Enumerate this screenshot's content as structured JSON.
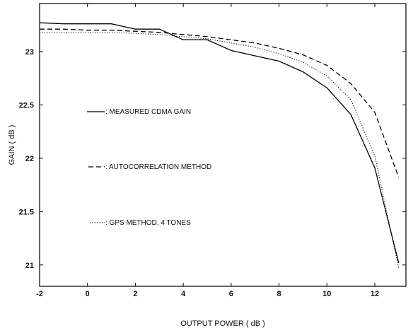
{
  "chart_data": {
    "type": "line",
    "title": "",
    "xlabel": "OUTPUT POWER ( dB )",
    "ylabel": "GAIN ( dB )",
    "xlim": [
      -2,
      13.3
    ],
    "ylim": [
      20.8,
      23.45
    ],
    "xticks": [
      -2,
      0,
      2,
      4,
      6,
      8,
      10,
      12
    ],
    "yticks": [
      21,
      21.5,
      22,
      22.5,
      23
    ],
    "xtick_labels": [
      "-2",
      "0",
      "2",
      "4",
      "6",
      "8",
      "10",
      "12"
    ],
    "ytick_labels": [
      "21",
      "21.5",
      "22",
      "22.5",
      "23"
    ],
    "grid": false,
    "legend_placement": "inside-left",
    "series": [
      {
        "name": "MEASURED CDMA GAIN",
        "legend_label": ": MEASURED CDMA GAIN",
        "style": "solid",
        "color": "#000000",
        "x": [
          -2,
          -1,
          0,
          1,
          2,
          3,
          4,
          5,
          6,
          7,
          8,
          9,
          10,
          11,
          12,
          13
        ],
        "y": [
          23.27,
          23.26,
          23.26,
          23.26,
          23.21,
          23.21,
          23.11,
          23.11,
          23.01,
          22.96,
          22.91,
          22.81,
          22.66,
          22.41,
          21.91,
          21.02
        ]
      },
      {
        "name": "AUTOCORRELATION METHOD",
        "legend_label": ": AUTOCORRELATION METHOD",
        "style": "dashed",
        "color": "#000000",
        "x": [
          -2,
          -1,
          0,
          1,
          2,
          3,
          4,
          5,
          6,
          7,
          8,
          9,
          10,
          11,
          12,
          13
        ],
        "y": [
          23.21,
          23.21,
          23.2,
          23.2,
          23.19,
          23.18,
          23.16,
          23.14,
          23.11,
          23.08,
          23.03,
          22.97,
          22.87,
          22.7,
          22.43,
          21.82
        ]
      },
      {
        "name": "GPS METHOD, 4 TONES",
        "legend_label": ": GPS METHOD, 4 TONES",
        "style": "dotted",
        "color": "#000000",
        "x": [
          -2,
          -1,
          0,
          1,
          2,
          3,
          4,
          5,
          6,
          7,
          8,
          9,
          10,
          11,
          12,
          13
        ],
        "y": [
          23.18,
          23.18,
          23.18,
          23.18,
          23.17,
          23.16,
          23.14,
          23.12,
          23.08,
          23.04,
          22.98,
          22.9,
          22.77,
          22.55,
          22.02,
          20.97
        ]
      }
    ]
  }
}
